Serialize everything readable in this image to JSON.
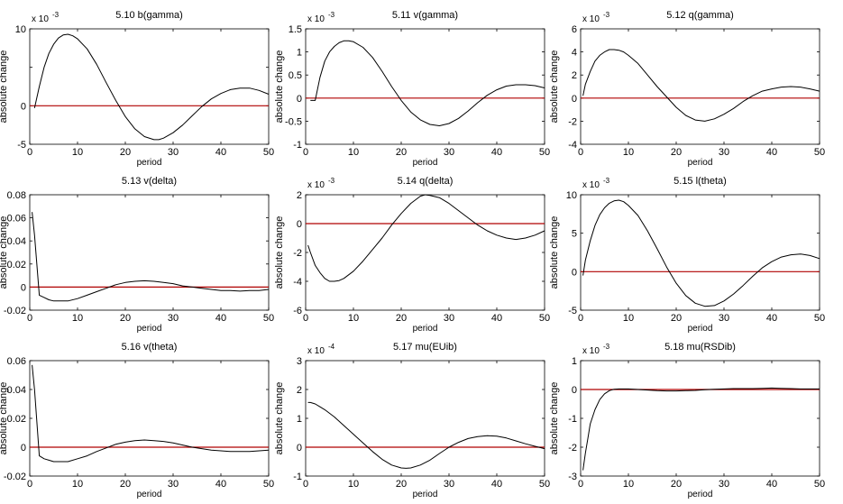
{
  "figure": {
    "background": "#ffffff"
  },
  "style": {
    "series_color": "#000000",
    "zero_line_color": "#b00000"
  },
  "chart_data": [
    {
      "type": "line",
      "title": "5.10 b(gamma)",
      "xlabel": "period",
      "ylabel": "absolute change",
      "xlim": [
        0,
        50
      ],
      "ylim": [
        -5,
        10
      ],
      "scale_label": "x 10",
      "scale_exp": "-3",
      "xticks": [
        "0",
        "10",
        "20",
        "30",
        "40",
        "50"
      ],
      "yticks": [
        {
          "v": -5,
          "t": "-5"
        },
        {
          "v": 0,
          "t": "0"
        },
        {
          "v": 5,
          "t": ""
        },
        {
          "v": 10,
          "t": "10"
        }
      ],
      "series": [
        {
          "x": [
            1,
            2,
            3,
            4,
            5,
            6,
            7,
            8,
            9,
            10,
            12,
            14,
            16,
            18,
            20,
            22,
            24,
            26,
            27,
            28,
            30,
            32,
            34,
            36,
            38,
            40,
            42,
            44,
            46,
            48,
            50
          ],
          "values": [
            -0.3,
            2.5,
            5.0,
            6.8,
            8.0,
            8.8,
            9.2,
            9.3,
            9.1,
            8.7,
            7.4,
            5.4,
            3.0,
            0.7,
            -1.4,
            -3.0,
            -4.0,
            -4.4,
            -4.4,
            -4.2,
            -3.5,
            -2.5,
            -1.3,
            -0.1,
            0.9,
            1.6,
            2.1,
            2.3,
            2.3,
            2.0,
            1.5
          ]
        }
      ],
      "zero_line": true
    },
    {
      "type": "line",
      "title": "5.11 v(gamma)",
      "xlabel": "period",
      "ylabel": "absolute change",
      "xlim": [
        0,
        50
      ],
      "ylim": [
        -1,
        1.5
      ],
      "scale_label": "x 10",
      "scale_exp": "-3",
      "xticks": [
        "0",
        "10",
        "20",
        "30",
        "40",
        "50"
      ],
      "yticks": [
        {
          "v": -1,
          "t": "-1"
        },
        {
          "v": -0.5,
          "t": "-0.5"
        },
        {
          "v": 0,
          "t": "0"
        },
        {
          "v": 0.5,
          "t": "0.5"
        },
        {
          "v": 1,
          "t": "1"
        },
        {
          "v": 1.5,
          "t": "1.5"
        }
      ],
      "series": [
        {
          "x": [
            1,
            2,
            3,
            4,
            5,
            6,
            7,
            8,
            9,
            10,
            12,
            14,
            16,
            18,
            20,
            22,
            24,
            26,
            28,
            30,
            32,
            34,
            36,
            38,
            40,
            42,
            44,
            46,
            48,
            50
          ],
          "values": [
            -0.05,
            -0.05,
            0.45,
            0.8,
            1.0,
            1.12,
            1.2,
            1.24,
            1.24,
            1.22,
            1.1,
            0.88,
            0.58,
            0.25,
            -0.05,
            -0.3,
            -0.47,
            -0.57,
            -0.6,
            -0.55,
            -0.44,
            -0.28,
            -0.1,
            0.06,
            0.18,
            0.26,
            0.29,
            0.29,
            0.27,
            0.22
          ]
        }
      ],
      "zero_line": true
    },
    {
      "type": "line",
      "title": "5.12 q(gamma)",
      "xlabel": "period",
      "ylabel": "absolute change",
      "xlim": [
        0,
        50
      ],
      "ylim": [
        -4,
        6
      ],
      "scale_label": "x 10",
      "scale_exp": "-3",
      "xticks": [
        "0",
        "10",
        "20",
        "30",
        "40",
        "50"
      ],
      "yticks": [
        {
          "v": -4,
          "t": "-4"
        },
        {
          "v": -2,
          "t": "-2"
        },
        {
          "v": 0,
          "t": "0"
        },
        {
          "v": 2,
          "t": "2"
        },
        {
          "v": 4,
          "t": "4"
        },
        {
          "v": 6,
          "t": "6"
        }
      ],
      "series": [
        {
          "x": [
            0.5,
            1,
            2,
            3,
            4,
            5,
            6,
            7,
            8,
            9,
            10,
            12,
            14,
            16,
            18,
            20,
            22,
            24,
            26,
            28,
            30,
            32,
            34,
            36,
            38,
            40,
            42,
            44,
            46,
            48,
            50
          ],
          "values": [
            0.2,
            1.2,
            2.3,
            3.2,
            3.7,
            4.0,
            4.2,
            4.2,
            4.15,
            4.0,
            3.7,
            3.0,
            2.0,
            1.0,
            0.1,
            -0.8,
            -1.5,
            -1.9,
            -2.0,
            -1.8,
            -1.4,
            -0.9,
            -0.3,
            0.2,
            0.6,
            0.8,
            0.95,
            1.0,
            0.95,
            0.8,
            0.6
          ]
        }
      ],
      "zero_line": true
    },
    {
      "type": "line",
      "title": "5.13 v(delta)",
      "xlabel": "period",
      "ylabel": "absolute change",
      "xlim": [
        0,
        50
      ],
      "ylim": [
        -0.02,
        0.08
      ],
      "scale_label": "",
      "scale_exp": "",
      "xticks": [
        "0",
        "10",
        "20",
        "30",
        "40",
        "50"
      ],
      "yticks": [
        {
          "v": -0.02,
          "t": "-0.02"
        },
        {
          "v": 0,
          "t": "0"
        },
        {
          "v": 0.02,
          "t": "0.02"
        },
        {
          "v": 0.04,
          "t": "0.04"
        },
        {
          "v": 0.06,
          "t": "0.06"
        },
        {
          "v": 0.08,
          "t": "0.08"
        }
      ],
      "series": [
        {
          "x": [
            0.5,
            1,
            2,
            3,
            4,
            5,
            6,
            8,
            10,
            12,
            14,
            16,
            18,
            20,
            22,
            24,
            26,
            28,
            30,
            32,
            34,
            36,
            38,
            40,
            42,
            44,
            46,
            48,
            50
          ],
          "values": [
            0.065,
            0.045,
            -0.007,
            -0.009,
            -0.011,
            -0.012,
            -0.012,
            -0.012,
            -0.01,
            -0.007,
            -0.004,
            -0.001,
            0.002,
            0.004,
            0.005,
            0.0055,
            0.005,
            0.004,
            0.003,
            0.001,
            0.0,
            -0.001,
            -0.002,
            -0.003,
            -0.003,
            -0.0035,
            -0.003,
            -0.003,
            -0.002
          ]
        }
      ],
      "zero_line": true
    },
    {
      "type": "line",
      "title": "5.14 q(delta)",
      "xlabel": "period",
      "ylabel": "absolute change",
      "xlim": [
        0,
        50
      ],
      "ylim": [
        -6,
        2
      ],
      "scale_label": "x 10",
      "scale_exp": "-3",
      "xticks": [
        "0",
        "10",
        "20",
        "30",
        "40",
        "50"
      ],
      "yticks": [
        {
          "v": -6,
          "t": "-6"
        },
        {
          "v": -4,
          "t": "-4"
        },
        {
          "v": -2,
          "t": "-2"
        },
        {
          "v": 0,
          "t": "0"
        },
        {
          "v": 2,
          "t": "2"
        }
      ],
      "series": [
        {
          "x": [
            0.5,
            1,
            2,
            3,
            4,
            5,
            6,
            7,
            8,
            10,
            12,
            14,
            16,
            18,
            20,
            22,
            24,
            25,
            26,
            28,
            30,
            32,
            34,
            36,
            38,
            40,
            42,
            44,
            46,
            48,
            50
          ],
          "values": [
            -1.5,
            -2.0,
            -2.9,
            -3.4,
            -3.8,
            -4.0,
            -4.0,
            -3.95,
            -3.8,
            -3.3,
            -2.6,
            -1.8,
            -1.0,
            -0.1,
            0.7,
            1.4,
            1.9,
            2.0,
            1.95,
            1.8,
            1.4,
            0.9,
            0.4,
            -0.1,
            -0.5,
            -0.8,
            -1.0,
            -1.1,
            -1.0,
            -0.8,
            -0.5
          ]
        }
      ],
      "zero_line": true
    },
    {
      "type": "line",
      "title": "5.15 l(theta)",
      "xlabel": "period",
      "ylabel": "absolute change",
      "xlim": [
        0,
        50
      ],
      "ylim": [
        -5,
        10
      ],
      "scale_label": "x 10",
      "scale_exp": "-3",
      "xticks": [
        "0",
        "10",
        "20",
        "30",
        "40",
        "50"
      ],
      "yticks": [
        {
          "v": -5,
          "t": "-5"
        },
        {
          "v": 0,
          "t": "0"
        },
        {
          "v": 5,
          "t": "5"
        },
        {
          "v": 10,
          "t": "10"
        }
      ],
      "series": [
        {
          "x": [
            0.5,
            1,
            2,
            3,
            4,
            5,
            6,
            7,
            8,
            9,
            10,
            12,
            14,
            16,
            18,
            20,
            22,
            24,
            26,
            28,
            30,
            32,
            34,
            36,
            38,
            40,
            42,
            44,
            46,
            48,
            50
          ],
          "values": [
            -0.5,
            1.5,
            4.0,
            6.0,
            7.4,
            8.3,
            8.9,
            9.2,
            9.3,
            9.1,
            8.6,
            7.3,
            5.3,
            3.0,
            0.6,
            -1.5,
            -3.1,
            -4.1,
            -4.5,
            -4.4,
            -3.8,
            -2.9,
            -1.8,
            -0.6,
            0.5,
            1.3,
            1.9,
            2.2,
            2.3,
            2.1,
            1.7
          ]
        }
      ],
      "zero_line": true
    },
    {
      "type": "line",
      "title": "5.16 v(theta)",
      "xlabel": "period",
      "ylabel": "absolute change",
      "xlim": [
        0,
        50
      ],
      "ylim": [
        -0.02,
        0.06
      ],
      "scale_label": "",
      "scale_exp": "",
      "xticks": [
        "0",
        "10",
        "20",
        "30",
        "40",
        "50"
      ],
      "yticks": [
        {
          "v": -0.02,
          "t": "-0.02"
        },
        {
          "v": 0,
          "t": "0"
        },
        {
          "v": 0.02,
          "t": "0.02"
        },
        {
          "v": 0.04,
          "t": "0.04"
        },
        {
          "v": 0.06,
          "t": "0.06"
        }
      ],
      "series": [
        {
          "x": [
            0.5,
            1,
            2,
            3,
            4,
            5,
            6,
            8,
            10,
            12,
            14,
            16,
            18,
            20,
            22,
            24,
            26,
            28,
            30,
            32,
            34,
            36,
            38,
            40,
            42,
            44,
            46,
            48,
            50
          ],
          "values": [
            0.057,
            0.04,
            -0.006,
            -0.008,
            -0.009,
            -0.01,
            -0.01,
            -0.01,
            -0.008,
            -0.006,
            -0.003,
            -0.0005,
            0.002,
            0.0035,
            0.0045,
            0.005,
            0.0045,
            0.004,
            0.003,
            0.0015,
            0.0,
            -0.001,
            -0.002,
            -0.0025,
            -0.003,
            -0.003,
            -0.003,
            -0.0025,
            -0.002
          ]
        }
      ],
      "zero_line": true
    },
    {
      "type": "line",
      "title": "5.17 mu(EUib)",
      "xlabel": "period",
      "ylabel": "absolute change",
      "xlim": [
        0,
        50
      ],
      "ylim": [
        -1,
        3
      ],
      "scale_label": "x 10",
      "scale_exp": "-4",
      "xticks": [
        "0",
        "10",
        "20",
        "30",
        "40",
        "50"
      ],
      "yticks": [
        {
          "v": -1,
          "t": "-1"
        },
        {
          "v": 0,
          "t": "0"
        },
        {
          "v": 1,
          "t": "1"
        },
        {
          "v": 2,
          "t": "2"
        },
        {
          "v": 3,
          "t": "3"
        }
      ],
      "series": [
        {
          "x": [
            0.5,
            1,
            2,
            3,
            4,
            6,
            8,
            10,
            12,
            14,
            16,
            18,
            20,
            21,
            22,
            24,
            26,
            28,
            30,
            32,
            34,
            36,
            38,
            40,
            42,
            44,
            46,
            48,
            50
          ],
          "values": [
            1.55,
            1.55,
            1.5,
            1.4,
            1.3,
            1.05,
            0.75,
            0.45,
            0.15,
            -0.15,
            -0.42,
            -0.62,
            -0.72,
            -0.73,
            -0.72,
            -0.62,
            -0.45,
            -0.22,
            0.0,
            0.17,
            0.3,
            0.37,
            0.4,
            0.38,
            0.32,
            0.22,
            0.12,
            0.03,
            -0.05
          ]
        }
      ],
      "zero_line": true
    },
    {
      "type": "line",
      "title": "5.18 mu(RSDib)",
      "xlabel": "period",
      "ylabel": "absolute change",
      "xlim": [
        0,
        50
      ],
      "ylim": [
        -3,
        1
      ],
      "scale_label": "x 10",
      "scale_exp": "-3",
      "xticks": [
        "0",
        "10",
        "20",
        "30",
        "40",
        "50"
      ],
      "yticks": [
        {
          "v": -3,
          "t": "-3"
        },
        {
          "v": -2,
          "t": "-2"
        },
        {
          "v": -1,
          "t": "-1"
        },
        {
          "v": 0,
          "t": "0"
        },
        {
          "v": 1,
          "t": "1"
        }
      ],
      "series": [
        {
          "x": [
            0.5,
            1,
            1.5,
            2,
            3,
            4,
            5,
            6,
            7,
            8,
            10,
            12,
            14,
            16,
            18,
            20,
            22,
            24,
            26,
            28,
            30,
            32,
            34,
            36,
            38,
            40,
            42,
            44,
            46,
            48,
            50
          ],
          "values": [
            -2.8,
            -2.2,
            -1.7,
            -1.2,
            -0.7,
            -0.35,
            -0.15,
            -0.04,
            0.01,
            0.02,
            0.02,
            0.0,
            -0.02,
            -0.04,
            -0.05,
            -0.05,
            -0.04,
            -0.03,
            -0.01,
            0.01,
            0.02,
            0.03,
            0.03,
            0.03,
            0.04,
            0.05,
            0.04,
            0.03,
            0.02,
            0.02,
            0.02
          ]
        }
      ],
      "zero_line": true
    }
  ]
}
